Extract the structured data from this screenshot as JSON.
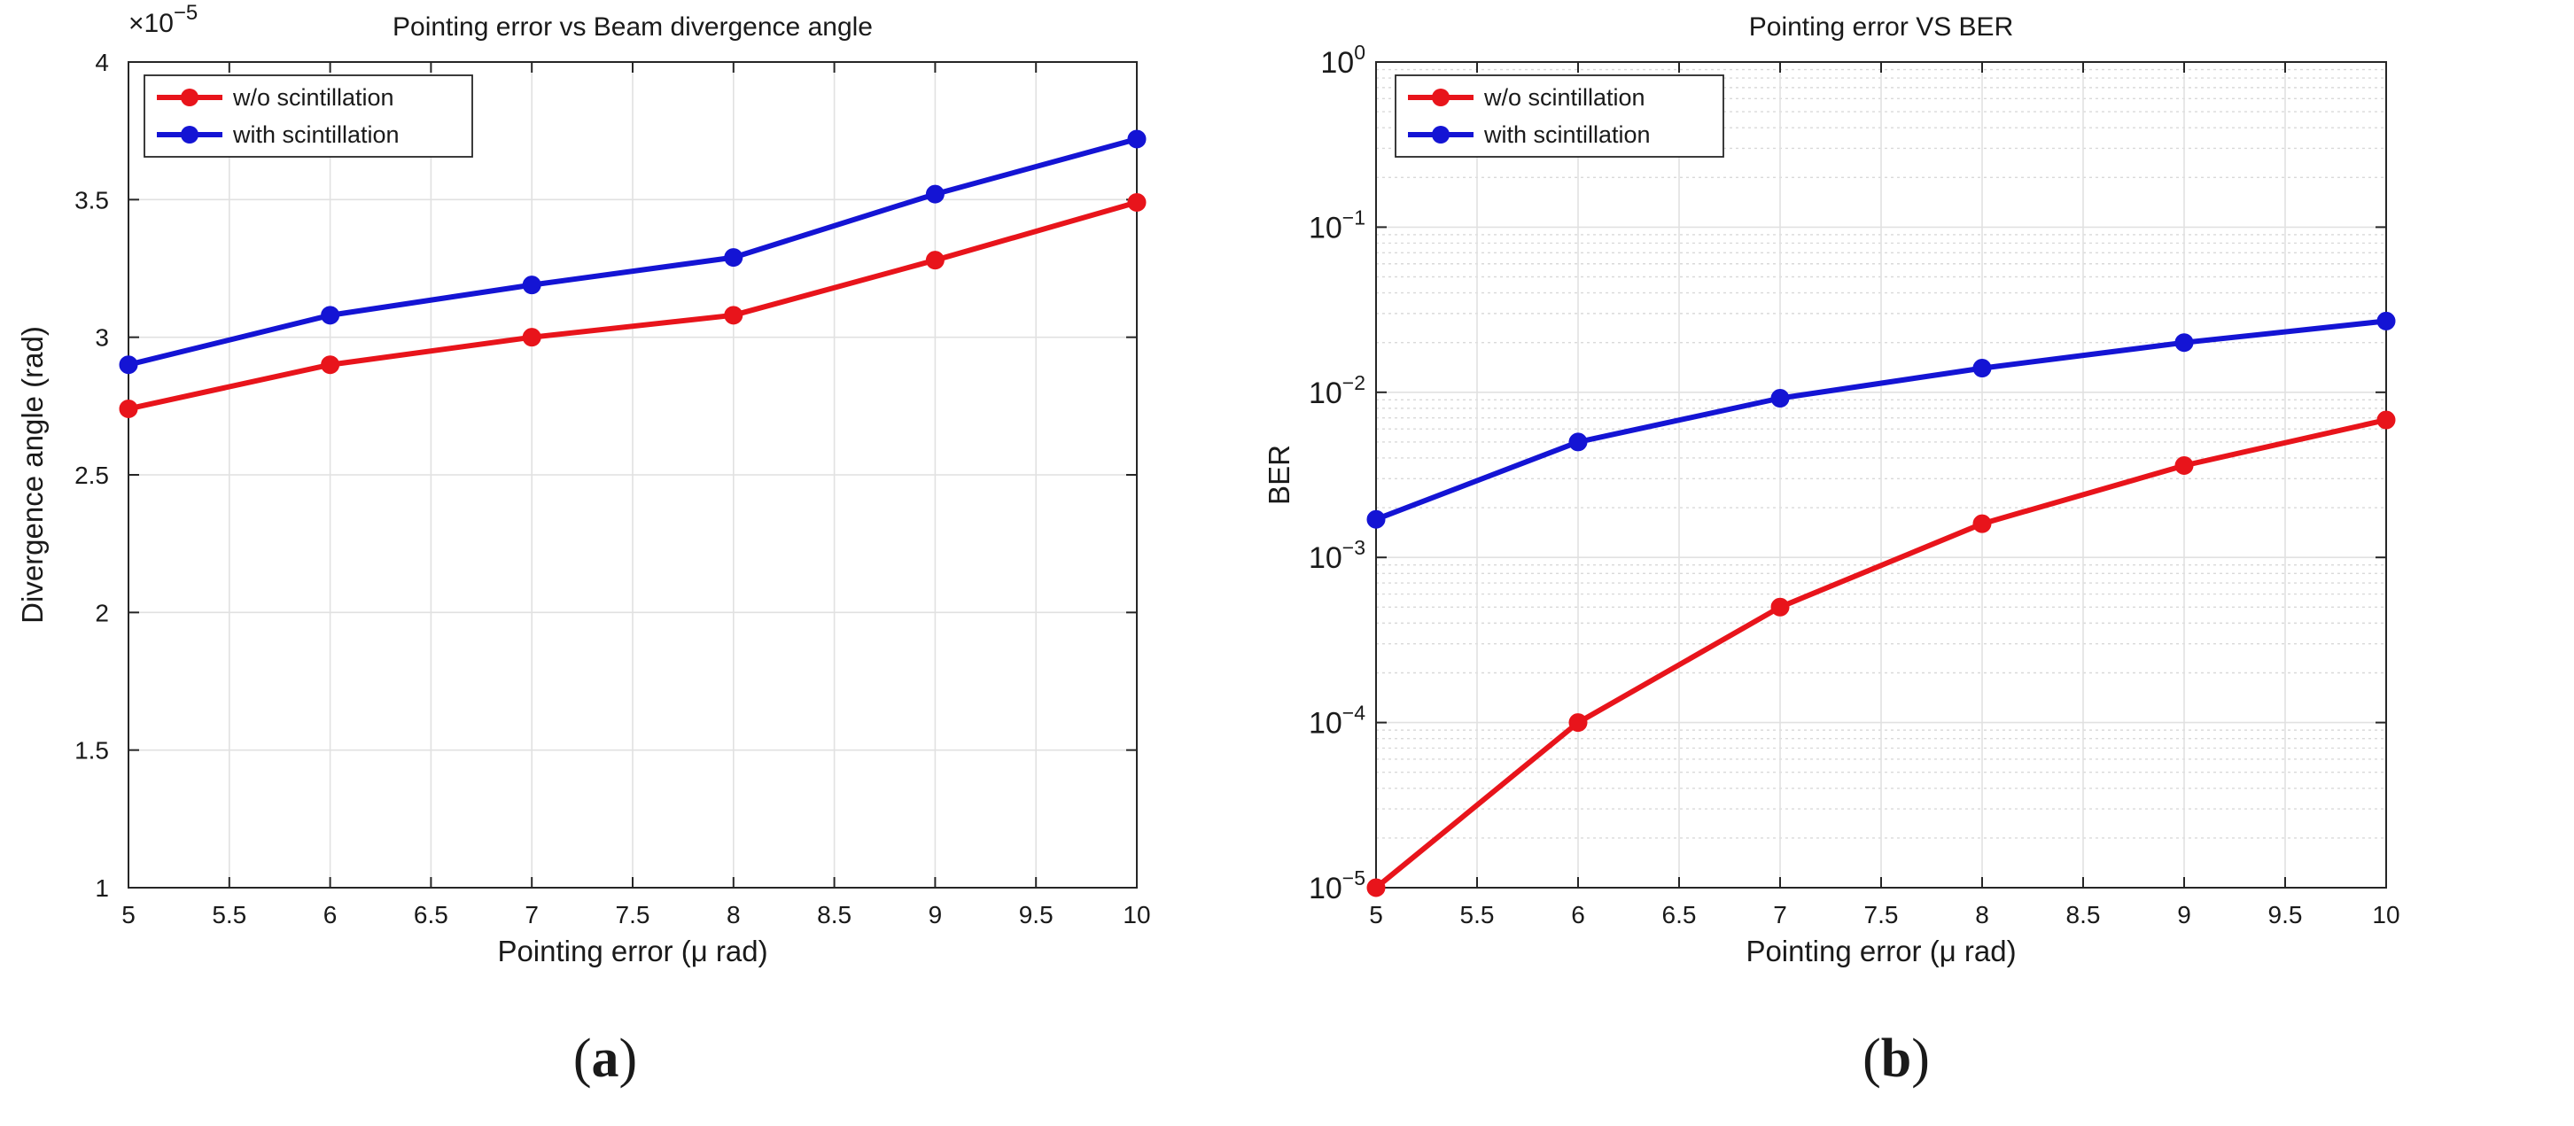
{
  "chart_data": [
    {
      "type": "line",
      "title": "Pointing error vs Beam divergence angle",
      "xlabel": "Pointing error (μ rad)",
      "ylabel": "Divergence angle (rad)",
      "y_multiplier": "×10",
      "y_multiplier_exp": "−5",
      "y_scale": "linear",
      "x": [
        5,
        6,
        7,
        8,
        9,
        10
      ],
      "xlim": [
        5,
        10
      ],
      "ylim": [
        1,
        4
      ],
      "x_ticks": [
        5,
        5.5,
        6,
        6.5,
        7,
        7.5,
        8,
        8.5,
        9,
        9.5,
        10
      ],
      "y_ticks": [
        1,
        1.5,
        2,
        2.5,
        3,
        3.5,
        4
      ],
      "grid": true,
      "legend_position": "top-left",
      "series": [
        {
          "name": "w/o scintillation",
          "color": "#e8141b",
          "values": [
            2.74,
            2.9,
            3.0,
            3.08,
            3.28,
            3.49
          ]
        },
        {
          "name": "with scintillation",
          "color": "#1414d4",
          "values": [
            2.9,
            3.08,
            3.19,
            3.29,
            3.52,
            3.72
          ]
        }
      ],
      "panel_label": {
        "open": "(",
        "letter": "a",
        "close": ")"
      }
    },
    {
      "type": "line",
      "title": "Pointing error VS BER",
      "xlabel": "Pointing error (μ rad)",
      "ylabel": "BER",
      "y_scale": "log",
      "x": [
        5,
        6,
        7,
        8,
        9,
        10
      ],
      "xlim": [
        5,
        10
      ],
      "ylim": [
        1e-05,
        1
      ],
      "x_ticks": [
        5,
        5.5,
        6,
        6.5,
        7,
        7.5,
        8,
        8.5,
        9,
        9.5,
        10
      ],
      "y_ticks": [
        1e-05,
        0.0001,
        0.001,
        0.01,
        0.1,
        1
      ],
      "y_tick_base": "10",
      "y_tick_exps": [
        "−5",
        "−4",
        "−3",
        "−2",
        "−1",
        "0"
      ],
      "grid": true,
      "legend_position": "top-left",
      "series": [
        {
          "name": "w/o scintillation",
          "color": "#e8141b",
          "values": [
            1e-05,
            0.0001,
            0.0005,
            0.0016,
            0.0036,
            0.0068
          ]
        },
        {
          "name": "with scintillation",
          "color": "#1414d4",
          "values": [
            0.0017,
            0.005,
            0.0092,
            0.014,
            0.02,
            0.027
          ]
        }
      ],
      "panel_label": {
        "open": "(",
        "letter": "b",
        "close": ")"
      }
    }
  ]
}
